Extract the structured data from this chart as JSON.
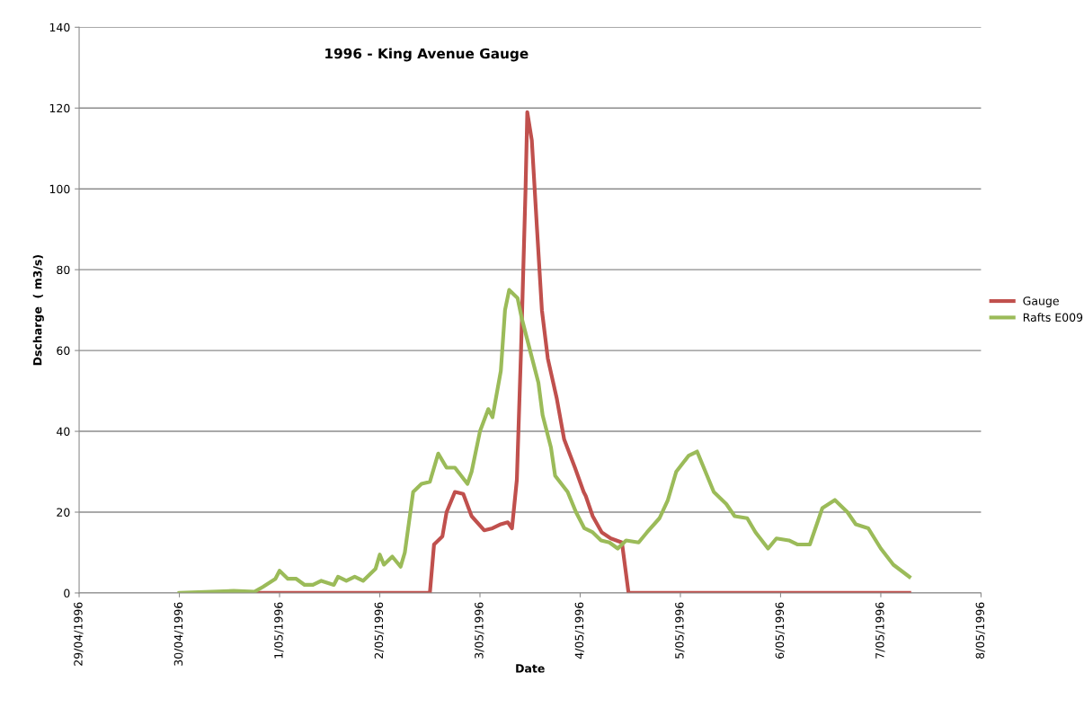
{
  "chart_data": {
    "type": "line",
    "title": "1996 - King Avenue Gauge",
    "xlabel": "Date",
    "ylabel": "Dscharge  ( m3/s)",
    "xlim": [
      "1996-04-29",
      "1996-05-08"
    ],
    "xticks": [
      {
        "value": "1996-04-29",
        "label": "29/04/1996"
      },
      {
        "value": "1996-04-30",
        "label": "30/04/1996"
      },
      {
        "value": "1996-05-01",
        "label": "1/05/1996"
      },
      {
        "value": "1996-05-02",
        "label": "2/05/1996"
      },
      {
        "value": "1996-05-03",
        "label": "3/05/1996"
      },
      {
        "value": "1996-05-04",
        "label": "4/05/1996"
      },
      {
        "value": "1996-05-05",
        "label": "5/05/1996"
      },
      {
        "value": "1996-05-06",
        "label": "6/05/1996"
      },
      {
        "value": "1996-05-07",
        "label": "7/05/1996"
      },
      {
        "value": "1996-05-08",
        "label": "8/05/1996"
      }
    ],
    "ylim": [
      0,
      140
    ],
    "yticks": [
      0,
      20,
      40,
      60,
      80,
      100,
      120,
      140
    ],
    "grid": "y",
    "legend": "right",
    "marker": "none",
    "line_style": "solid",
    "series": [
      {
        "name": "Gauge",
        "color": "#c0504d",
        "x": [
          "1996-04-30T18:00",
          "1996-05-02T12:00",
          "1996-05-02T13:00",
          "1996-05-02T15:00",
          "1996-05-02T16:00",
          "1996-05-02T18:00",
          "1996-05-02T20:00",
          "1996-05-02T22:00",
          "1996-05-03T01:00",
          "1996-05-03T03:00",
          "1996-05-03T05:00",
          "1996-05-03T06:40",
          "1996-05-03T07:40",
          "1996-05-03T08:50",
          "1996-05-03T09:50",
          "1996-05-03T10:55",
          "1996-05-03T11:20",
          "1996-05-03T12:25",
          "1996-05-03T13:40",
          "1996-05-03T14:50",
          "1996-05-03T16:15",
          "1996-05-03T18:25",
          "1996-05-03T20:10",
          "1996-05-03T22:45",
          "1996-05-04T00:50",
          "1996-05-04T01:20",
          "1996-05-04T03:00",
          "1996-05-04T05:10",
          "1996-05-04T07:20",
          "1996-05-04T10:00",
          "1996-05-04T11:35",
          "1996-05-07T06:50"
        ],
        "values": [
          0,
          0,
          12,
          14,
          20,
          25,
          24.5,
          19,
          15.5,
          16,
          17,
          17.5,
          16,
          28,
          60,
          100,
          119,
          112,
          90,
          70,
          58,
          48,
          38,
          31,
          25,
          24,
          19,
          15,
          13.5,
          12.5,
          0,
          0
        ]
      },
      {
        "name": "Rafts E009",
        "color": "#9bbb59",
        "x": [
          "1996-04-30T00:00",
          "1996-04-30T13:00",
          "1996-04-30T18:00",
          "1996-04-30T20:00",
          "1996-04-30T23:00",
          "1996-05-01T00:00",
          "1996-05-01T02:00",
          "1996-05-01T04:00",
          "1996-05-01T06:00",
          "1996-05-01T08:00",
          "1996-05-01T10:00",
          "1996-05-01T13:00",
          "1996-05-01T14:00",
          "1996-05-01T16:00",
          "1996-05-01T18:00",
          "1996-05-01T20:00",
          "1996-05-01T23:00",
          "1996-05-02T00:00",
          "1996-05-02T01:00",
          "1996-05-02T03:00",
          "1996-05-02T05:00",
          "1996-05-02T06:00",
          "1996-05-02T08:00",
          "1996-05-02T10:00",
          "1996-05-02T12:00",
          "1996-05-02T14:00",
          "1996-05-02T16:00",
          "1996-05-02T18:00",
          "1996-05-02T21:00",
          "1996-05-02T22:00",
          "1996-05-03T00:00",
          "1996-05-03T02:00",
          "1996-05-03T03:00",
          "1996-05-03T05:00",
          "1996-05-03T06:00",
          "1996-05-03T07:00",
          "1996-05-03T09:00",
          "1996-05-03T10:00",
          "1996-05-03T12:00",
          "1996-05-03T14:00",
          "1996-05-03T15:00",
          "1996-05-03T17:00",
          "1996-05-03T18:00",
          "1996-05-03T21:00",
          "1996-05-03T23:00",
          "1996-05-04T01:00",
          "1996-05-04T03:00",
          "1996-05-04T05:00",
          "1996-05-04T07:00",
          "1996-05-04T09:00",
          "1996-05-04T11:00",
          "1996-05-04T14:00",
          "1996-05-04T16:00",
          "1996-05-04T19:00",
          "1996-05-04T21:00",
          "1996-05-04T23:00",
          "1996-05-05T02:00",
          "1996-05-05T04:00",
          "1996-05-05T06:00",
          "1996-05-05T08:00",
          "1996-05-05T11:00",
          "1996-05-05T13:00",
          "1996-05-05T16:00",
          "1996-05-05T18:00",
          "1996-05-05T21:00",
          "1996-05-05T23:00",
          "1996-05-06T02:00",
          "1996-05-06T04:00",
          "1996-05-06T07:00",
          "1996-05-06T09:00",
          "1996-05-06T10:00",
          "1996-05-06T13:00",
          "1996-05-06T16:00",
          "1996-05-06T18:00",
          "1996-05-06T21:00",
          "1996-05-07T00:00",
          "1996-05-07T03:00",
          "1996-05-07T06:50"
        ],
        "values": [
          0,
          0.5,
          0.3,
          1.5,
          3.5,
          5.5,
          3.5,
          3.5,
          2,
          2,
          3,
          2,
          4,
          3,
          4,
          3,
          6,
          9.5,
          7,
          9,
          6.5,
          10,
          25,
          27,
          27.5,
          34.5,
          31,
          31,
          27,
          30,
          40,
          45.5,
          43.5,
          55,
          70,
          75,
          73,
          68,
          60,
          52,
          44,
          36,
          29,
          25,
          20,
          16,
          15,
          13,
          12.5,
          11,
          13,
          12.5,
          15,
          18.5,
          23,
          30,
          34,
          35,
          30,
          25,
          22,
          19,
          18.5,
          15,
          11,
          13.5,
          13,
          12,
          12,
          18,
          21,
          23,
          20,
          17,
          16,
          11,
          7,
          4
        ]
      }
    ]
  }
}
